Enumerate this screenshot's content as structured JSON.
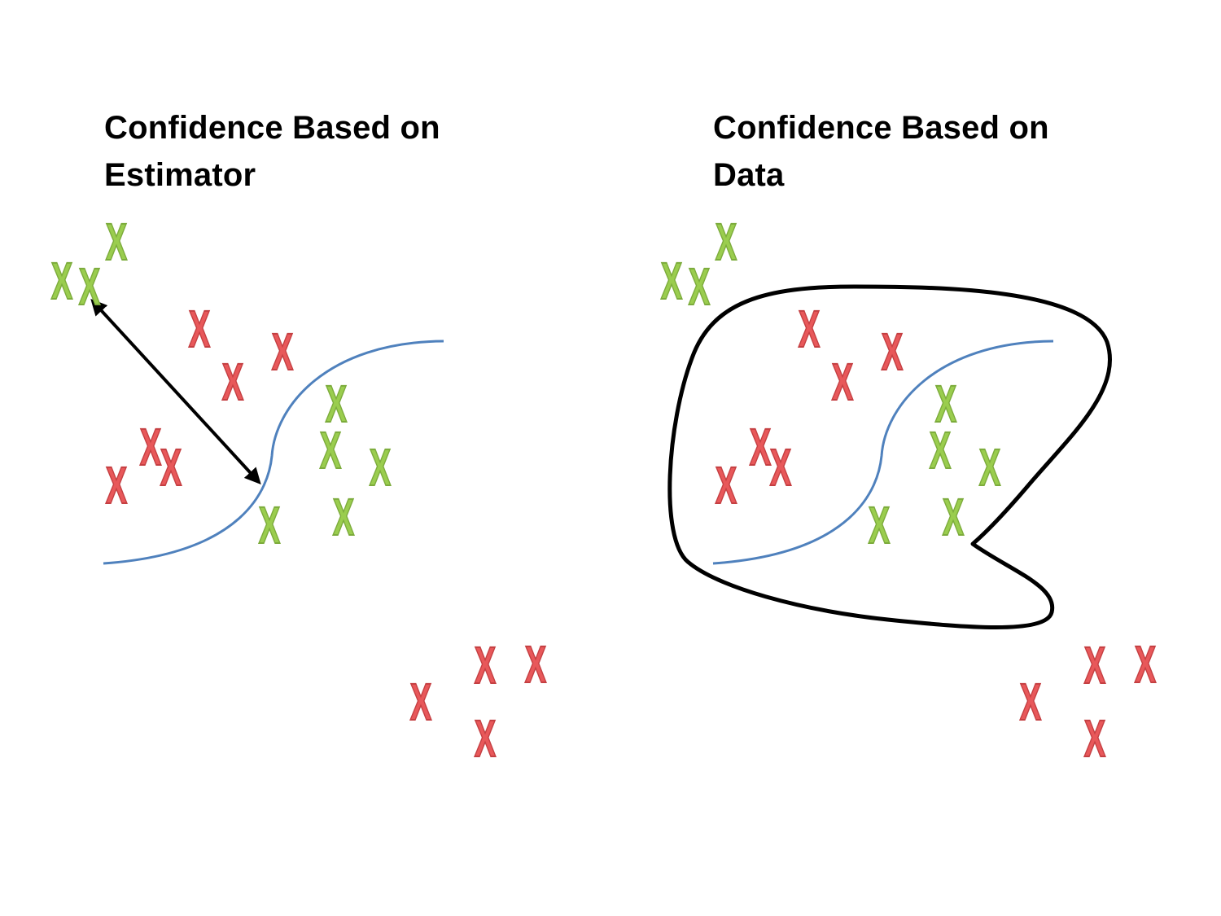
{
  "panels": [
    {
      "id": "left",
      "title_line1": "Confidence Based on",
      "title_line2": "Estimator",
      "marker_glyph": "X"
    },
    {
      "id": "right",
      "title_line1": "Confidence Based on",
      "title_line2": "Data",
      "marker_glyph": "X"
    }
  ],
  "colors": {
    "class_green": "#9acd4e",
    "class_green_edge": "#7cab3c",
    "class_red": "#e8585a",
    "class_red_edge": "#c43f42",
    "decision_boundary": "#4f81bd",
    "arrow": "#000000",
    "data_region": "#000000"
  }
}
